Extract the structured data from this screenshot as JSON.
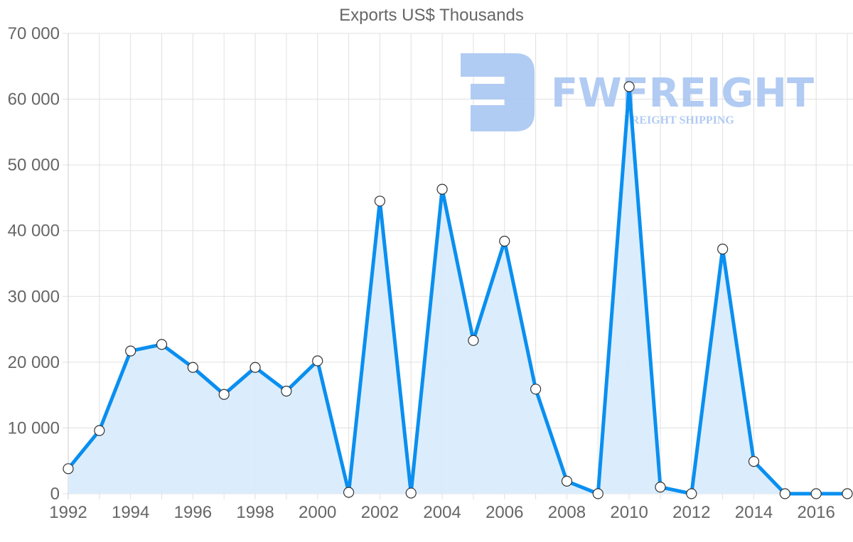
{
  "chart_data": {
    "type": "area",
    "title": "Exports US$ Thousands",
    "xlabel": "",
    "ylabel": "",
    "categories": [
      "1992",
      "1993",
      "1994",
      "1995",
      "1996",
      "1997",
      "1998",
      "1999",
      "2000",
      "2001",
      "2002",
      "2003",
      "2004",
      "2005",
      "2006",
      "2007",
      "2008",
      "2009",
      "2010",
      "2011",
      "2012",
      "2013",
      "2014",
      "2015",
      "2016",
      "2017"
    ],
    "x_tick_labels": [
      "1992",
      "1994",
      "1996",
      "1998",
      "2000",
      "2002",
      "2004",
      "2006",
      "2008",
      "2010",
      "2012",
      "2014",
      "2016"
    ],
    "series": [
      {
        "name": "Exports US$ Thousands",
        "values": [
          3800,
          9600,
          21700,
          22700,
          19200,
          15100,
          19200,
          15600,
          20200,
          200,
          44500,
          100,
          46300,
          23300,
          38400,
          15900,
          1900,
          0,
          61900,
          1000,
          0,
          37200,
          4900,
          0,
          0,
          0
        ]
      }
    ],
    "ylim": [
      0,
      70000
    ],
    "y_ticks": [
      0,
      10000,
      20000,
      30000,
      40000,
      50000,
      60000,
      70000
    ],
    "y_tick_labels": [
      "0",
      "10 000",
      "20 000",
      "30 000",
      "40 000",
      "50 000",
      "60 000",
      "70 000"
    ],
    "grid": true,
    "legend": "none",
    "colors": {
      "line": "#0a8ff0",
      "fill": "#d9ecfc",
      "point_fill": "#ffffff",
      "point_stroke": "#333333",
      "grid": "#e0e0e0",
      "text": "#666666"
    }
  },
  "watermark": {
    "brand": "FWFREIGHT",
    "tagline": "FREIGHT SHIPPING",
    "color": "#a9c6f2"
  }
}
